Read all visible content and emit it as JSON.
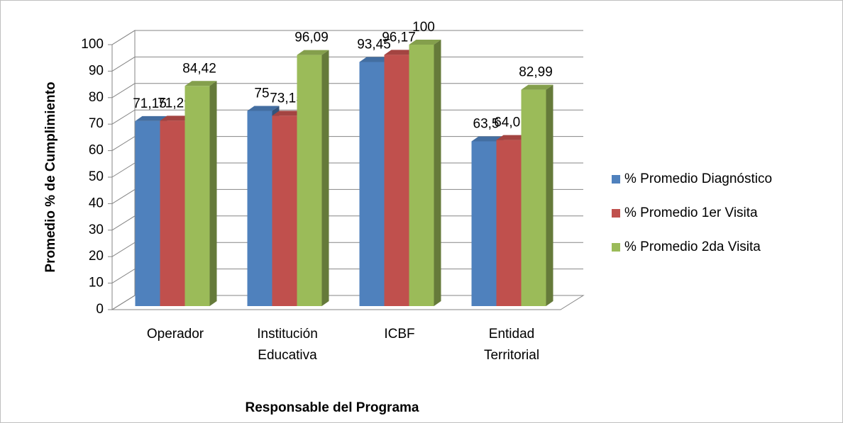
{
  "chart_data": {
    "type": "bar3d",
    "x_label": "Responsable del Programa",
    "y_label": "Promedio % de Cumplimiento",
    "categories": [
      "Operador",
      "Institución Educativa",
      "ICBF",
      "Entidad Territorial"
    ],
    "series": [
      {
        "name": "% Promedio Diagnóstico",
        "color": "#4f81bd",
        "values": [
          71.15,
          75,
          93.45,
          63.5
        ],
        "value_labels": [
          "71,15",
          "75",
          "93,45",
          "63,5"
        ]
      },
      {
        "name": "% Promedio 1er Visita",
        "color": "#c0504d",
        "values": [
          71.29,
          73.15,
          96.17,
          64.01
        ],
        "value_labels": [
          "71,29",
          "73,15",
          "96,17",
          "64,01"
        ]
      },
      {
        "name": "% Promedio 2da Visita",
        "color": "#9bbb59",
        "values": [
          84.42,
          96.09,
          100,
          82.99
        ],
        "value_labels": [
          "84,42",
          "96,09",
          "100",
          "82,99"
        ]
      }
    ],
    "ylim": [
      0,
      100
    ],
    "yticks": [
      0,
      10,
      20,
      30,
      40,
      50,
      60,
      70,
      80,
      90,
      100
    ],
    "grid": true,
    "legend": "right"
  }
}
